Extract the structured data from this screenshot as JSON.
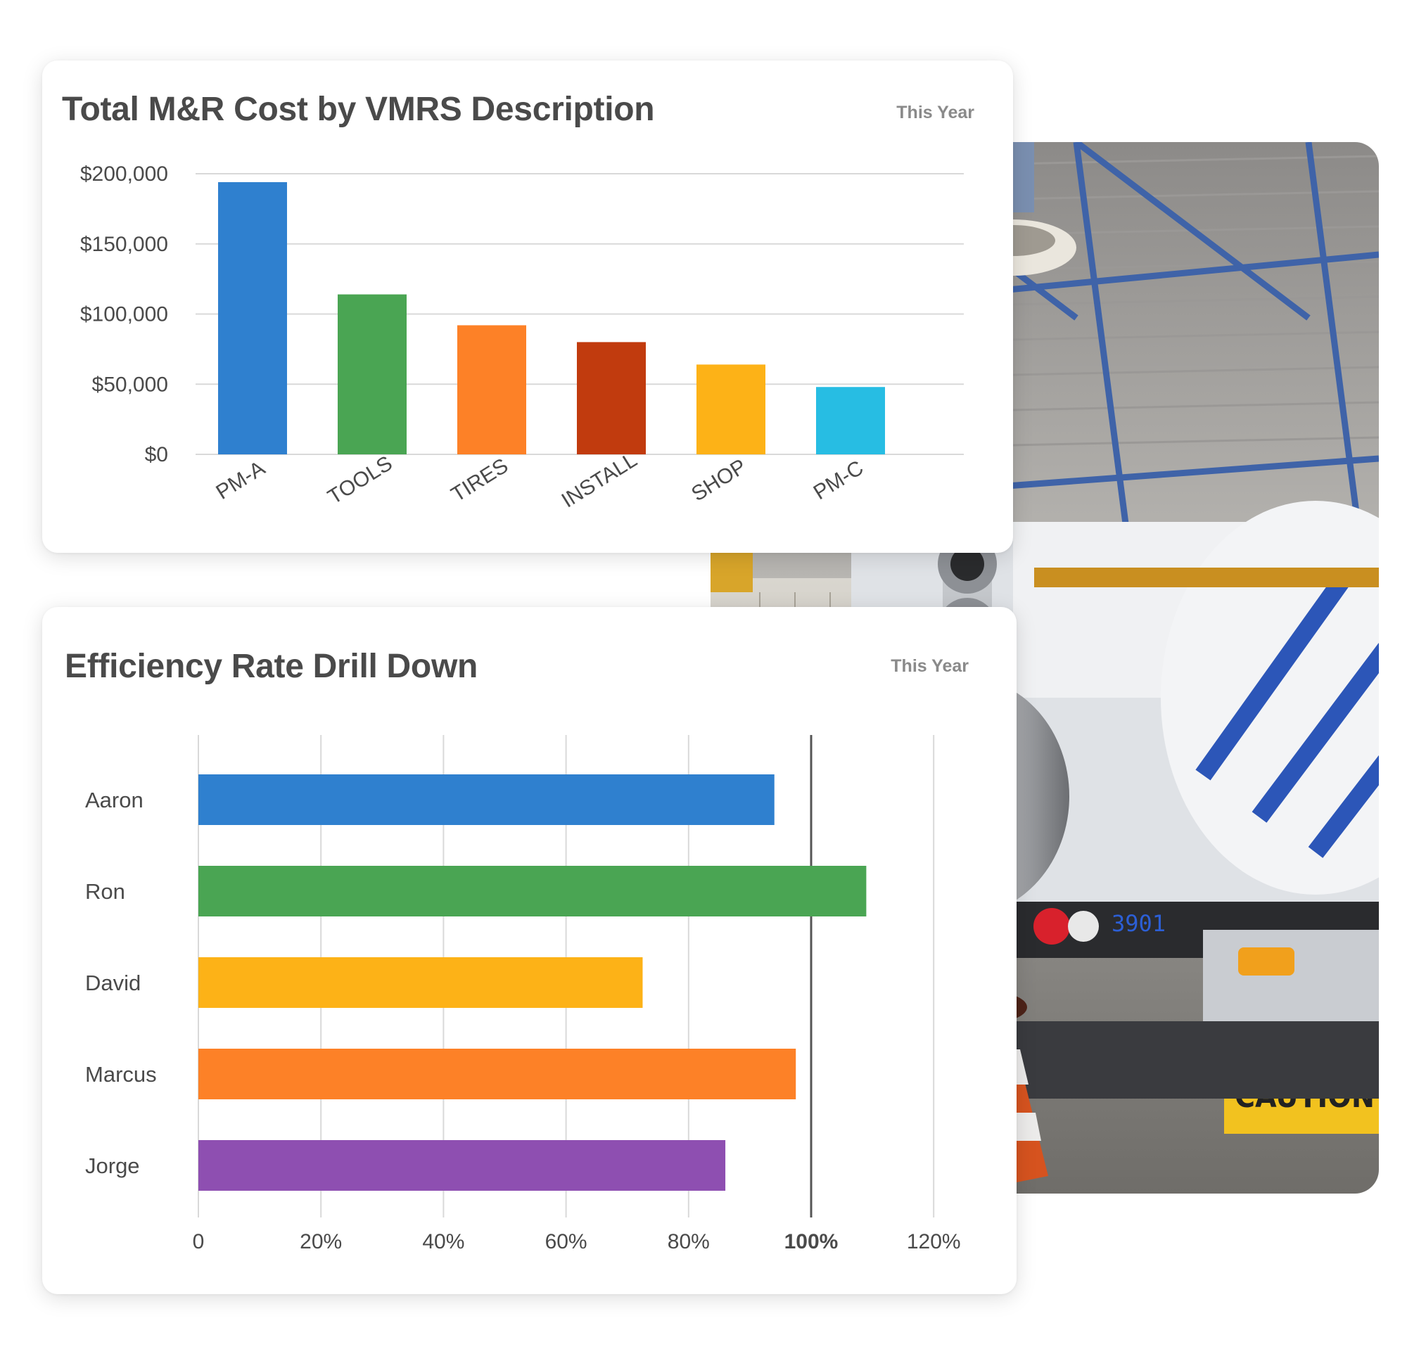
{
  "colors": {
    "blue": "#2f80cf",
    "green": "#4aa553",
    "orange": "#fd8127",
    "dark_orange": "#c13b0e",
    "yellow": "#fdb217",
    "cyan": "#27bde3",
    "purple": "#8e4fb1",
    "grid": "#d9d9d9",
    "text": "#4a4a4a"
  },
  "cost_card": {
    "title": "Total M&R Cost by VMRS Description",
    "period": "This Year"
  },
  "efficiency_card": {
    "title": "Efficiency Rate Drill Down",
    "period": "This Year"
  },
  "photo": {
    "icon": "shop-photo",
    "description_visible_text": [
      "CAUTION",
      "3901"
    ]
  },
  "chart_data": [
    {
      "type": "bar",
      "orientation": "vertical",
      "categories": [
        "PM-A",
        "TOOLS",
        "TIRES",
        "INSTALL",
        "SHOP",
        "PM-C"
      ],
      "values": [
        194000,
        114000,
        92000,
        80000,
        64000,
        48000
      ],
      "colors": [
        "#2f80cf",
        "#4aa553",
        "#fd8127",
        "#c13b0e",
        "#fdb217",
        "#27bde3"
      ],
      "ylim": [
        0,
        200000
      ],
      "yticks": [
        0,
        50000,
        100000,
        150000,
        200000
      ],
      "ytick_labels": [
        "$0",
        "$50,000",
        "$100,000",
        "$150,000",
        "$200,000"
      ],
      "grid": true,
      "title": "Total M&R Cost by VMRS Description"
    },
    {
      "type": "bar",
      "orientation": "horizontal",
      "categories": [
        "Aaron",
        "Ron",
        "David",
        "Marcus",
        "Jorge"
      ],
      "values": [
        94,
        109,
        72.5,
        97.5,
        86
      ],
      "colors": [
        "#2f80cf",
        "#4aa553",
        "#fdb217",
        "#fd8127",
        "#8e4fb1"
      ],
      "xlim": [
        0,
        120
      ],
      "xticks": [
        0,
        20,
        40,
        60,
        80,
        100,
        120
      ],
      "xtick_labels": [
        "0",
        "20%",
        "40%",
        "60%",
        "80%",
        "100%",
        "120%"
      ],
      "emphasized_tick": 100,
      "grid": true,
      "title": "Efficiency Rate Drill Down"
    }
  ]
}
